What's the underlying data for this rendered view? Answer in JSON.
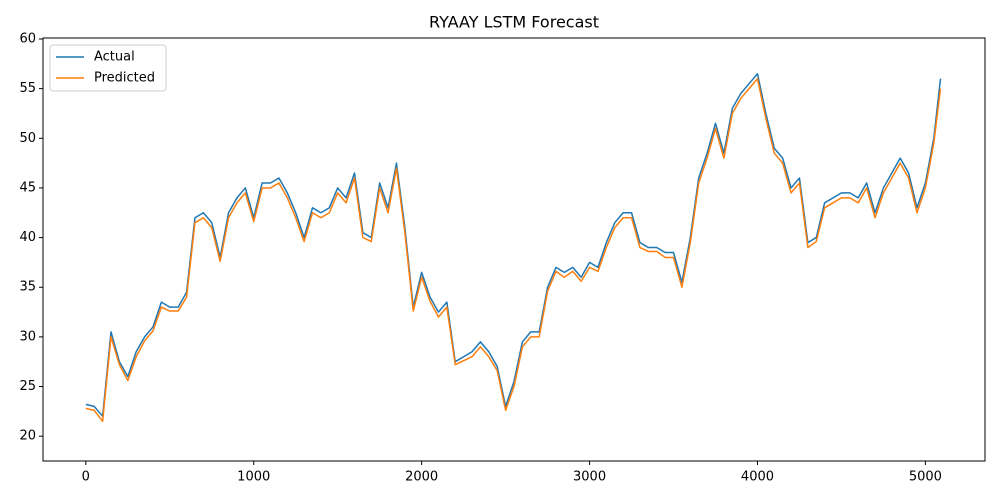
{
  "chart_data": {
    "type": "line",
    "title": "RYAAY LSTM Forecast",
    "x": [
      0,
      50,
      100,
      150,
      200,
      250,
      300,
      350,
      400,
      450,
      500,
      550,
      600,
      650,
      700,
      750,
      800,
      850,
      900,
      950,
      1000,
      1050,
      1100,
      1150,
      1200,
      1250,
      1300,
      1350,
      1400,
      1450,
      1500,
      1550,
      1600,
      1650,
      1700,
      1750,
      1800,
      1850,
      1900,
      1950,
      2000,
      2050,
      2100,
      2150,
      2200,
      2250,
      2300,
      2350,
      2400,
      2450,
      2500,
      2550,
      2600,
      2650,
      2700,
      2750,
      2800,
      2850,
      2900,
      2950,
      3000,
      3050,
      3100,
      3150,
      3200,
      3250,
      3300,
      3350,
      3400,
      3450,
      3500,
      3550,
      3600,
      3650,
      3700,
      3750,
      3800,
      3850,
      3900,
      3950,
      4000,
      4050,
      4100,
      4150,
      4200,
      4250,
      4300,
      4350,
      4400,
      4450,
      4500,
      4550,
      4600,
      4650,
      4700,
      4750,
      4800,
      4850,
      4900,
      4950,
      5000,
      5050,
      5090
    ],
    "series": [
      {
        "name": "Actual",
        "color": "#1f77b4",
        "values": [
          23.2,
          23,
          22,
          30.5,
          27.5,
          26,
          28.5,
          30,
          31,
          33.5,
          33,
          33,
          34.5,
          42,
          42.5,
          41.5,
          38,
          42.5,
          44,
          45,
          42,
          45.5,
          45.5,
          46,
          44.5,
          42.5,
          40,
          43,
          42.5,
          43,
          45,
          44,
          46.5,
          40.5,
          40,
          45.5,
          43,
          47.5,
          41,
          33,
          36.5,
          34,
          32.5,
          33.5,
          27.5,
          28,
          28.5,
          29.5,
          28.5,
          27,
          23,
          25.5,
          29.5,
          30.5,
          30.5,
          35,
          37,
          36.5,
          37,
          36,
          37.5,
          37,
          39.5,
          41.5,
          42.5,
          42.5,
          39.5,
          39,
          39,
          38.5,
          38.5,
          35.5,
          40,
          46,
          48.5,
          51.5,
          48.5,
          53,
          54.5,
          55.5,
          56.5,
          52.5,
          49,
          48,
          45,
          46,
          39.5,
          40,
          43.5,
          44,
          44.5,
          44.5,
          44,
          45.5,
          42.5,
          45,
          46.5,
          48,
          46.5,
          43,
          45.5,
          50,
          56
        ]
      },
      {
        "name": "Predicted",
        "color": "#ff7f0e",
        "values": [
          22.8,
          22.6,
          21.5,
          30,
          27.2,
          25.6,
          28,
          29.6,
          30.6,
          33,
          32.6,
          32.6,
          34,
          41.5,
          42,
          41,
          37.6,
          42,
          43.5,
          44.5,
          41.6,
          45,
          45,
          45.5,
          44,
          42,
          39.6,
          42.5,
          42,
          42.5,
          44.5,
          43.5,
          46,
          40,
          39.6,
          45,
          42.5,
          47,
          40.5,
          32.6,
          36,
          33.6,
          32,
          33,
          27.2,
          27.6,
          28,
          29,
          28,
          26.6,
          22.6,
          25,
          29,
          30,
          30,
          34.6,
          36.6,
          36,
          36.6,
          35.6,
          37,
          36.6,
          39,
          41,
          42,
          42,
          39,
          38.6,
          38.6,
          38,
          38,
          35,
          39.5,
          45.5,
          48,
          51,
          48,
          52.5,
          54,
          55,
          56,
          52,
          48.5,
          47.5,
          44.5,
          45.5,
          39,
          39.6,
          43,
          43.5,
          44,
          44,
          43.5,
          45,
          42,
          44.5,
          46,
          47.5,
          46,
          42.5,
          45,
          49.5,
          55
        ]
      }
    ],
    "xlim": [
      -255,
      5355
    ],
    "ylim": [
      17.5,
      60.1
    ],
    "xticks": [
      0,
      1000,
      2000,
      3000,
      4000,
      5000
    ],
    "yticks": [
      20,
      25,
      30,
      35,
      40,
      45,
      50,
      55,
      60
    ],
    "legend": "upper left"
  }
}
